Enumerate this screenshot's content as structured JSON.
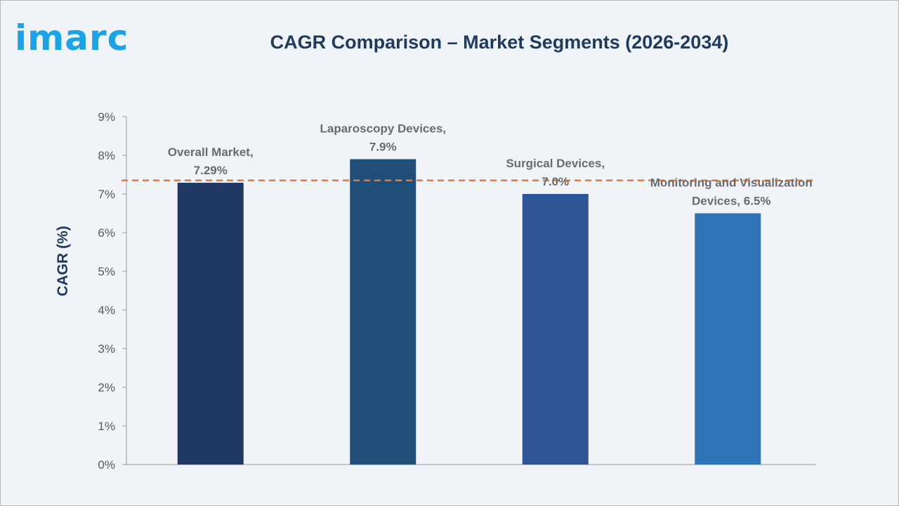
{
  "brand": {
    "logo_text": "imarc",
    "logo_color": "#1aa3e8"
  },
  "chart_data": {
    "type": "bar",
    "title": "CAGR Comparison – Market Segments (2026-2034)",
    "ylabel": "CAGR (%)",
    "xlabel": "",
    "ylim": [
      0,
      9
    ],
    "yticks": [
      0,
      1,
      2,
      3,
      4,
      5,
      6,
      7,
      8,
      9
    ],
    "ytick_labels": [
      "0%",
      "1%",
      "2%",
      "3%",
      "4%",
      "5%",
      "6%",
      "7%",
      "8%",
      "9%"
    ],
    "categories": [
      "Overall Market",
      "Laparoscopy Devices",
      "Surgical Devices",
      "Monitoring and Visualization Devices"
    ],
    "values": [
      7.29,
      7.9,
      7.0,
      6.5
    ],
    "data_labels": [
      [
        "Overall Market,",
        "7.29%"
      ],
      [
        "Laparoscopy Devices,",
        "7.9%"
      ],
      [
        "Surgical Devices,",
        "7.0%"
      ],
      [
        "Monitoring and Visualization",
        "Devices, 6.5%"
      ]
    ],
    "bar_colors": [
      "#1f3864",
      "#1f4e79",
      "#2f5597",
      "#2e75b6"
    ],
    "reference_line": {
      "value": 7.35,
      "style": "dashed",
      "color": "#e07b39"
    },
    "grid": false,
    "legend": "none"
  }
}
